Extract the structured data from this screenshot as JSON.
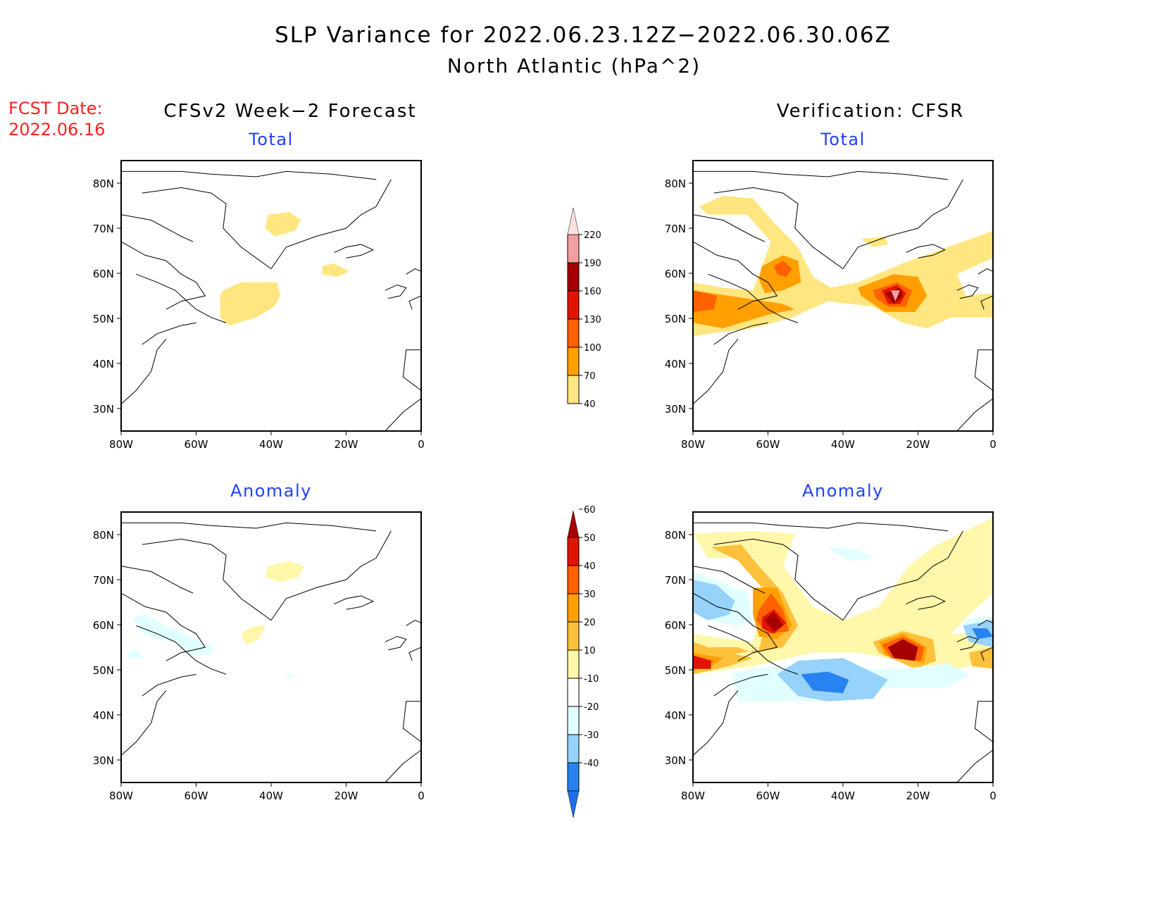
{
  "header": {
    "title_line1": "SLP Variance for 2022.06.23.12Z−2022.06.30.06Z",
    "title_line2": "North Atlantic (hPa^2)",
    "fcst_label": "FCST Date:",
    "fcst_date": "2022.06.16",
    "left_column_title": "CFSv2 Week−2 Forecast",
    "right_column_title": "Verification: CFSR"
  },
  "colors": {
    "title": "#000000",
    "fcst": "#ff2020",
    "panel_title": "#2040ff"
  },
  "chart_data": [
    {
      "type": "heatmap",
      "id": "forecast-total",
      "title": "Total",
      "column": "CFSv2 Week-2 Forecast",
      "xlabel": "",
      "ylabel": "",
      "x_ticks": [
        "80W",
        "60W",
        "40W",
        "20W",
        "0"
      ],
      "y_ticks": [
        "80N",
        "70N",
        "60N",
        "50N",
        "40N",
        "30N"
      ],
      "xlim": [
        -80,
        0
      ],
      "ylim": [
        25,
        85
      ],
      "levels": [
        40,
        70,
        100,
        130,
        160,
        190,
        220
      ],
      "features": [
        {
          "region": "central Greenland",
          "lon": -38,
          "lat": 72,
          "range": "40-70"
        },
        {
          "region": "south of Iceland",
          "lon": -23,
          "lat": 60,
          "range": "40-70"
        },
        {
          "region": "Labrador Sea / off Newfoundland",
          "lon": -45,
          "lat": 54,
          "range": "40-70"
        }
      ]
    },
    {
      "type": "heatmap",
      "id": "verification-total",
      "title": "Total",
      "column": "Verification: CFSR",
      "x_ticks": [
        "80W",
        "60W",
        "40W",
        "20W",
        "0"
      ],
      "y_ticks": [
        "80N",
        "70N",
        "60N",
        "50N",
        "40N",
        "30N"
      ],
      "xlim": [
        -80,
        0
      ],
      "ylim": [
        25,
        85
      ],
      "levels": [
        40,
        70,
        100,
        130,
        160,
        190,
        220
      ],
      "features": [
        {
          "region": "Hudson Bay / Labrador",
          "lon": -77,
          "lat": 54,
          "range": "100-130"
        },
        {
          "region": "Baffin Bay / Davis Strait",
          "lon": -56,
          "lat": 62,
          "range": "130-160"
        },
        {
          "region": "central North Atlantic",
          "lon": -27,
          "lat": 56,
          "range": ">190"
        },
        {
          "region": "Norwegian Sea band",
          "lon": -5,
          "lat": 67,
          "range": "40-70"
        }
      ]
    },
    {
      "type": "heatmap",
      "id": "forecast-anomaly",
      "title": "Anomaly",
      "column": "CFSv2 Week-2 Forecast",
      "x_ticks": [
        "80W",
        "60W",
        "40W",
        "20W",
        "0"
      ],
      "y_ticks": [
        "80N",
        "70N",
        "60N",
        "50N",
        "40N",
        "30N"
      ],
      "xlim": [
        -80,
        0
      ],
      "ylim": [
        25,
        85
      ],
      "levels": [
        -40,
        -30,
        -20,
        -10,
        10,
        20,
        30,
        40,
        50,
        60
      ],
      "features": [
        {
          "region": "central Greenland",
          "lon": -38,
          "lat": 71,
          "range": "10-20"
        },
        {
          "region": "south of Greenland",
          "lon": -48,
          "lat": 55,
          "range": "10-20"
        },
        {
          "region": "Labrador",
          "lon": -67,
          "lat": 55,
          "range": "-20 to -10"
        }
      ]
    },
    {
      "type": "heatmap",
      "id": "verification-anomaly",
      "title": "Anomaly",
      "column": "Verification: CFSR",
      "x_ticks": [
        "80W",
        "60W",
        "40W",
        "20W",
        "0"
      ],
      "y_ticks": [
        "80N",
        "70N",
        "60N",
        "50N",
        "40N",
        "30N"
      ],
      "xlim": [
        -80,
        0
      ],
      "ylim": [
        25,
        85
      ],
      "levels": [
        -40,
        -30,
        -20,
        -10,
        10,
        20,
        30,
        40,
        50,
        60
      ],
      "features": [
        {
          "region": "Hudson Bay",
          "lon": -77,
          "lat": 53,
          "range": "50-60"
        },
        {
          "region": "Davis Strait",
          "lon": -56,
          "lat": 62,
          "range": ">60"
        },
        {
          "region": "central North Atlantic",
          "lon": -28,
          "lat": 56,
          "range": ">60"
        },
        {
          "region": "south of Greenland / off Newfoundland",
          "lon": -42,
          "lat": 49,
          "range": "-40 to -30"
        },
        {
          "region": "west of British Isles",
          "lon": -12,
          "lat": 60,
          "range": "-40 to -30"
        },
        {
          "region": "Baffin Island",
          "lon": -75,
          "lat": 67,
          "range": "-30 to -20"
        }
      ]
    }
  ],
  "colorbars": {
    "total": {
      "labels": [
        "40",
        "70",
        "100",
        "130",
        "160",
        "190",
        "220"
      ],
      "colors": [
        "#ffe680",
        "#ffa000",
        "#ff6000",
        "#e11400",
        "#a50000",
        "#f0a0a0",
        "#ffe0e0"
      ]
    },
    "anomaly": {
      "labels": [
        "-40",
        "-30",
        "-20",
        "-10",
        "10",
        "20",
        "30",
        "40",
        "50",
        "60"
      ],
      "colors": [
        "#1e6eeb",
        "#2882f0",
        "#96d2fa",
        "#e1ffff",
        "#ffffff",
        "#fff7aa",
        "#ffc03c",
        "#ffa000",
        "#ff6000",
        "#e11400",
        "#a50000"
      ]
    }
  }
}
